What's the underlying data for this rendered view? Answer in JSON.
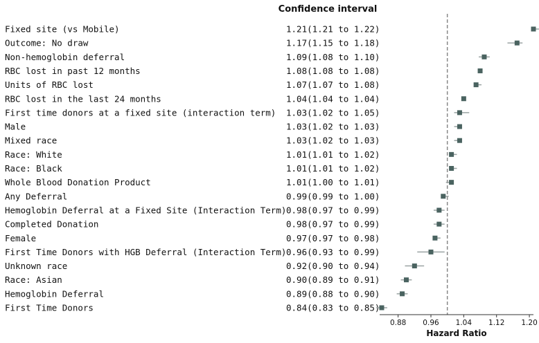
{
  "chart_data": {
    "type": "scatter",
    "subtype": "forest-plot",
    "column_header": "Confidence interval",
    "xlabel": "Hazard Ratio",
    "xlim": [
      0.835,
      1.21
    ],
    "xticks": [
      "0.88",
      "0.96",
      "1.04",
      "1.12",
      "1.20"
    ],
    "reference_line": 1.0,
    "grid": false,
    "colors": {
      "marker": "#4a6360",
      "whisker": "#9aa3a2",
      "reference": "#888888"
    },
    "rows": [
      {
        "label": "Fixed site (vs Mobile)",
        "ci_text": "1.21(1.21 to 1.22)",
        "hr": 1.21,
        "lo": 1.21,
        "hi": 1.22
      },
      {
        "label": "Outcome: No draw",
        "ci_text": "1.17(1.15 to 1.18)",
        "hr": 1.17,
        "lo": 1.15,
        "hi": 1.18
      },
      {
        "label": "Non-hemoglobin deferral",
        "ci_text": "1.09(1.08 to 1.10)",
        "hr": 1.09,
        "lo": 1.08,
        "hi": 1.1
      },
      {
        "label": "RBC lost in past 12 months",
        "ci_text": "1.08(1.08 to 1.08)",
        "hr": 1.08,
        "lo": 1.08,
        "hi": 1.08
      },
      {
        "label": "Units of RBC lost",
        "ci_text": "1.07(1.07 to 1.08)",
        "hr": 1.07,
        "lo": 1.07,
        "hi": 1.08
      },
      {
        "label": "RBC lost in the last 24 months",
        "ci_text": "1.04(1.04 to 1.04)",
        "hr": 1.04,
        "lo": 1.04,
        "hi": 1.04
      },
      {
        "label": "First time donors at a fixed site (interaction term)",
        "ci_text": "1.03(1.02 to 1.05)",
        "hr": 1.03,
        "lo": 1.02,
        "hi": 1.05
      },
      {
        "label": "Male",
        "ci_text": "1.03(1.02 to 1.03)",
        "hr": 1.03,
        "lo": 1.02,
        "hi": 1.03
      },
      {
        "label": "Mixed race",
        "ci_text": "1.03(1.02 to 1.03)",
        "hr": 1.03,
        "lo": 1.02,
        "hi": 1.03
      },
      {
        "label": "Race: White",
        "ci_text": "1.01(1.01 to 1.02)",
        "hr": 1.01,
        "lo": 1.01,
        "hi": 1.02
      },
      {
        "label": "Race: Black",
        "ci_text": "1.01(1.01 to 1.02)",
        "hr": 1.01,
        "lo": 1.01,
        "hi": 1.02
      },
      {
        "label": "Whole Blood Donation Product",
        "ci_text": "1.01(1.00 to 1.01)",
        "hr": 1.01,
        "lo": 1.0,
        "hi": 1.01
      },
      {
        "label": "Any Deferral",
        "ci_text": "0.99(0.99 to 1.00)",
        "hr": 0.99,
        "lo": 0.99,
        "hi": 1.0
      },
      {
        "label": "Hemoglobin Deferral at a Fixed Site (Interaction Term)",
        "ci_text": "0.98(0.97 to 0.99)",
        "hr": 0.98,
        "lo": 0.97,
        "hi": 0.99
      },
      {
        "label": "Completed Donation",
        "ci_text": "0.98(0.97 to 0.99)",
        "hr": 0.98,
        "lo": 0.97,
        "hi": 0.99
      },
      {
        "label": "Female",
        "ci_text": "0.97(0.97 to 0.98)",
        "hr": 0.97,
        "lo": 0.97,
        "hi": 0.98
      },
      {
        "label": "First Time Donors with HGB Deferral (Interaction Term)",
        "ci_text": "0.96(0.93 to 0.99)",
        "hr": 0.96,
        "lo": 0.93,
        "hi": 0.99
      },
      {
        "label": "Unknown race",
        "ci_text": "0.92(0.90 to 0.94)",
        "hr": 0.92,
        "lo": 0.9,
        "hi": 0.94
      },
      {
        "label": "Race: Asian",
        "ci_text": "0.90(0.89 to 0.91)",
        "hr": 0.9,
        "lo": 0.89,
        "hi": 0.91
      },
      {
        "label": "Hemoglobin Deferral",
        "ci_text": "0.89(0.88 to 0.90)",
        "hr": 0.89,
        "lo": 0.88,
        "hi": 0.9
      },
      {
        "label": "First Time Donors",
        "ci_text": "0.84(0.83 to 0.85)",
        "hr": 0.84,
        "lo": 0.83,
        "hi": 0.85
      }
    ]
  }
}
